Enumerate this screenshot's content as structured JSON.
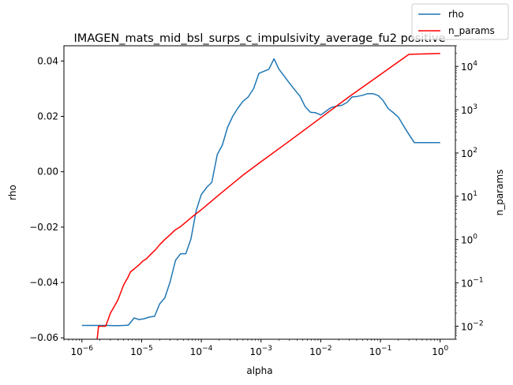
{
  "chart_data": {
    "type": "line",
    "title": "IMAGEN_mats_mid_bsl_surps_c_impulsivity_average_fu2 positive",
    "xlabel": "alpha",
    "ylabel": "rho",
    "ylabel_right": "n_params",
    "x_scale": "log",
    "y_right_scale": "log",
    "xlim": [
      5e-07,
      1.8
    ],
    "ylim": [
      -0.0605,
      0.0455
    ],
    "ylim_right": [
      0.005,
      30000
    ],
    "x_ticks": [
      {
        "value": 1e-06,
        "base": "10",
        "exp": "−6"
      },
      {
        "value": 1e-05,
        "base": "10",
        "exp": "−5"
      },
      {
        "value": 0.0001,
        "base": "10",
        "exp": "−4"
      },
      {
        "value": 0.001,
        "base": "10",
        "exp": "−3"
      },
      {
        "value": 0.01,
        "base": "10",
        "exp": "−2"
      },
      {
        "value": 0.1,
        "base": "10",
        "exp": "−1"
      },
      {
        "value": 1,
        "base": "10",
        "exp": "0"
      }
    ],
    "y_ticks": [
      {
        "value": 0.04,
        "label": "0.04"
      },
      {
        "value": 0.02,
        "label": "0.02"
      },
      {
        "value": 0.0,
        "label": "0.00"
      },
      {
        "value": -0.02,
        "label": "−0.02"
      },
      {
        "value": -0.04,
        "label": "−0.04"
      },
      {
        "value": -0.06,
        "label": "−0.06"
      }
    ],
    "y_right_ticks": [
      {
        "value": 0.01,
        "base": "10",
        "exp": "−2"
      },
      {
        "value": 0.1,
        "base": "10",
        "exp": "−1"
      },
      {
        "value": 1,
        "base": "10",
        "exp": "0"
      },
      {
        "value": 10,
        "base": "10",
        "exp": "1"
      },
      {
        "value": 100,
        "base": "10",
        "exp": "2"
      },
      {
        "value": 1000,
        "base": "10",
        "exp": "3"
      },
      {
        "value": 10000,
        "base": "10",
        "exp": "4"
      }
    ],
    "grid": false,
    "legend_position": "top-right",
    "series": [
      {
        "name": "rho",
        "color": "#1f77b4",
        "axis": "left",
        "x": [
          1e-06,
          1.2e-06,
          1.5e-06,
          1.8e-06,
          2.2e-06,
          2.7e-06,
          3.3e-06,
          4e-06,
          5e-06,
          6e-06,
          7.5e-06,
          9e-06,
          1.1e-05,
          1.35e-05,
          1.65e-05,
          2e-05,
          2.45e-05,
          3e-05,
          3.7e-05,
          4.5e-05,
          5.5e-05,
          6.7e-05,
          8.2e-05,
          0.0001,
          0.000125,
          0.00015,
          0.000185,
          0.000225,
          0.000275,
          0.000335,
          0.00041,
          0.0005,
          0.00061,
          0.00075,
          0.00092,
          0.0011,
          0.00135,
          0.00165,
          0.002,
          0.00245,
          0.003,
          0.0037,
          0.0045,
          0.0055,
          0.0067,
          0.0082,
          0.01,
          0.0125,
          0.015,
          0.0185,
          0.0225,
          0.0275,
          0.0335,
          0.041,
          0.05,
          0.061,
          0.075,
          0.092,
          0.11,
          0.135,
          0.165,
          0.2,
          0.245,
          0.3,
          0.37,
          0.45,
          0.55,
          0.67,
          0.82,
          1.0
        ],
        "y": [
          -0.0555,
          -0.0555,
          -0.0555,
          -0.0555,
          -0.0555,
          -0.0555,
          -0.0556,
          -0.0556,
          -0.0555,
          -0.0554,
          -0.0528,
          -0.0534,
          -0.0531,
          -0.0525,
          -0.0522,
          -0.0478,
          -0.0455,
          -0.0398,
          -0.032,
          -0.0296,
          -0.0296,
          -0.0243,
          -0.014,
          -0.0082,
          -0.0055,
          -0.0038,
          0.0062,
          0.0096,
          0.016,
          0.02,
          0.023,
          0.0255,
          0.027,
          0.03,
          0.0355,
          0.0362,
          0.037,
          0.0408,
          0.037,
          0.0345,
          0.032,
          0.0295,
          0.0273,
          0.0235,
          0.0215,
          0.0213,
          0.0205,
          0.022,
          0.0232,
          0.0237,
          0.024,
          0.025,
          0.027,
          0.0272,
          0.0276,
          0.0282,
          0.0282,
          0.0275,
          0.0258,
          0.0228,
          0.0213,
          0.0197,
          0.0165,
          0.0135,
          0.0105,
          0.0105,
          0.0105,
          0.0105,
          0.0105,
          0.0105
        ]
      },
      {
        "name": "n_params",
        "color": "#ff0000",
        "axis": "right",
        "x": [
          1.8e-06,
          1.9e-06,
          2.5e-06,
          3e-06,
          4e-06,
          5e-06,
          6e-06,
          6.5e-06,
          7.5e-06,
          9e-06,
          1.05e-05,
          1.2e-05,
          1.45e-05,
          1.7e-05,
          2e-05,
          2.4e-05,
          3e-05,
          3.6e-05,
          4.5e-05,
          5.5e-05,
          7e-05,
          0.0001,
          0.0002,
          0.0005,
          0.001,
          0.003,
          0.01,
          0.03,
          0.1,
          0.3,
          1.0
        ],
        "y": [
          0.005,
          0.01,
          0.01,
          0.02,
          0.04,
          0.09,
          0.14,
          0.18,
          0.21,
          0.26,
          0.32,
          0.36,
          0.47,
          0.58,
          0.76,
          0.98,
          1.29,
          1.65,
          2.0,
          2.52,
          3.35,
          4.9,
          11,
          31,
          63,
          190,
          650,
          2000,
          6500,
          19000,
          20000
        ]
      }
    ]
  }
}
